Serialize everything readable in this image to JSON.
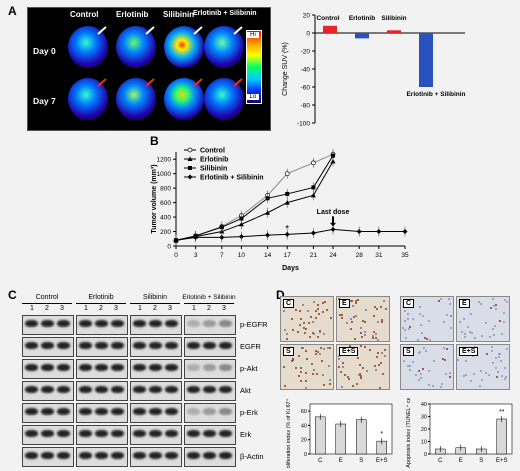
{
  "panels": {
    "a": "A",
    "b": "B",
    "c": "C",
    "d": "D"
  },
  "pet": {
    "columns": [
      "Control",
      "Erlotinib",
      "Silibinin",
      "Erlotinib + Silibinin"
    ],
    "rows": [
      "Day 0",
      "Day 7"
    ],
    "scale_hi": "Hi",
    "scale_lo": "Lo"
  },
  "chart_suv": {
    "type": "bar",
    "categories": [
      "Control",
      "Erlotinib",
      "Silibinin",
      "Erlotinib + Silibinin"
    ],
    "values": [
      8,
      -6,
      3,
      -60
    ],
    "colors": [
      "#e8232a",
      "#2a52be",
      "#e8232a",
      "#2a52be"
    ],
    "ylabel": "Change SUV (%)",
    "ylim": [
      -100,
      20
    ],
    "yticks": [
      "20",
      "0",
      "-20",
      "-40",
      "-60",
      "-80",
      "-100"
    ]
  },
  "chart_data": {
    "type": "line",
    "xlabel": "Days",
    "ylabel": "Tumor volume (mm³)",
    "xticks": [
      "0",
      "3",
      "7",
      "10",
      "14",
      "17",
      "21",
      "24",
      "28",
      "31",
      "35"
    ],
    "yticks": [
      "0",
      "200",
      "400",
      "600",
      "800",
      "1000",
      "1200"
    ],
    "xlim": [
      0,
      35
    ],
    "ylim": [
      0,
      1300
    ],
    "annotation": "Last dose",
    "star": "*",
    "series": [
      {
        "name": "Control",
        "x": [
          0,
          3,
          7,
          10,
          14,
          17,
          21,
          24
        ],
        "y": [
          70,
          140,
          270,
          420,
          700,
          1000,
          1150,
          1270
        ]
      },
      {
        "name": "Erlotinib",
        "x": [
          0,
          3,
          7,
          10,
          14,
          17,
          21,
          24
        ],
        "y": [
          80,
          130,
          200,
          300,
          460,
          600,
          700,
          1170
        ]
      },
      {
        "name": "Silibinin",
        "x": [
          0,
          3,
          7,
          10,
          14,
          17,
          21,
          24
        ],
        "y": [
          80,
          140,
          260,
          380,
          660,
          720,
          810,
          1250
        ]
      },
      {
        "name": "Erlotinib + Silibinin",
        "x": [
          0,
          3,
          7,
          10,
          14,
          17,
          21,
          24,
          28,
          31,
          35
        ],
        "y": [
          80,
          120,
          120,
          130,
          150,
          160,
          180,
          230,
          200,
          200,
          200
        ]
      }
    ]
  },
  "western": {
    "groups": [
      "Control",
      "Erlotinib",
      "Silibinin",
      "Erlotinib + Silibinin"
    ],
    "lanes": [
      "1",
      "2",
      "3"
    ],
    "proteins": [
      "p-EGFR",
      "EGFR",
      "p-Akt",
      "Akt",
      "p-Erk",
      "Erk",
      "β-Actin"
    ]
  },
  "ihc": {
    "left_tags": [
      "C",
      "E",
      "S",
      "E+S"
    ],
    "right_tags": [
      "C",
      "E",
      "S",
      "E+S"
    ]
  },
  "chart_prolif": {
    "type": "bar",
    "categories": [
      "C",
      "E",
      "S",
      "E+S"
    ],
    "values": [
      52,
      42,
      48,
      18
    ],
    "ylabel": "Proliferation index (% of Ki 67⁺ cells)",
    "yticks": [
      "0",
      "20",
      "40",
      "60"
    ],
    "ylim": [
      0,
      70
    ],
    "star": "*"
  },
  "chart_apop": {
    "type": "bar",
    "categories": [
      "C",
      "E",
      "S",
      "E+S"
    ],
    "values": [
      4,
      5,
      4,
      28
    ],
    "ylabel": "Apoptosis index (TUNEL⁺ cells)",
    "yticks": [
      "0",
      "10",
      "20",
      "30",
      "40"
    ],
    "ylim": [
      0,
      40
    ],
    "star": "**"
  }
}
